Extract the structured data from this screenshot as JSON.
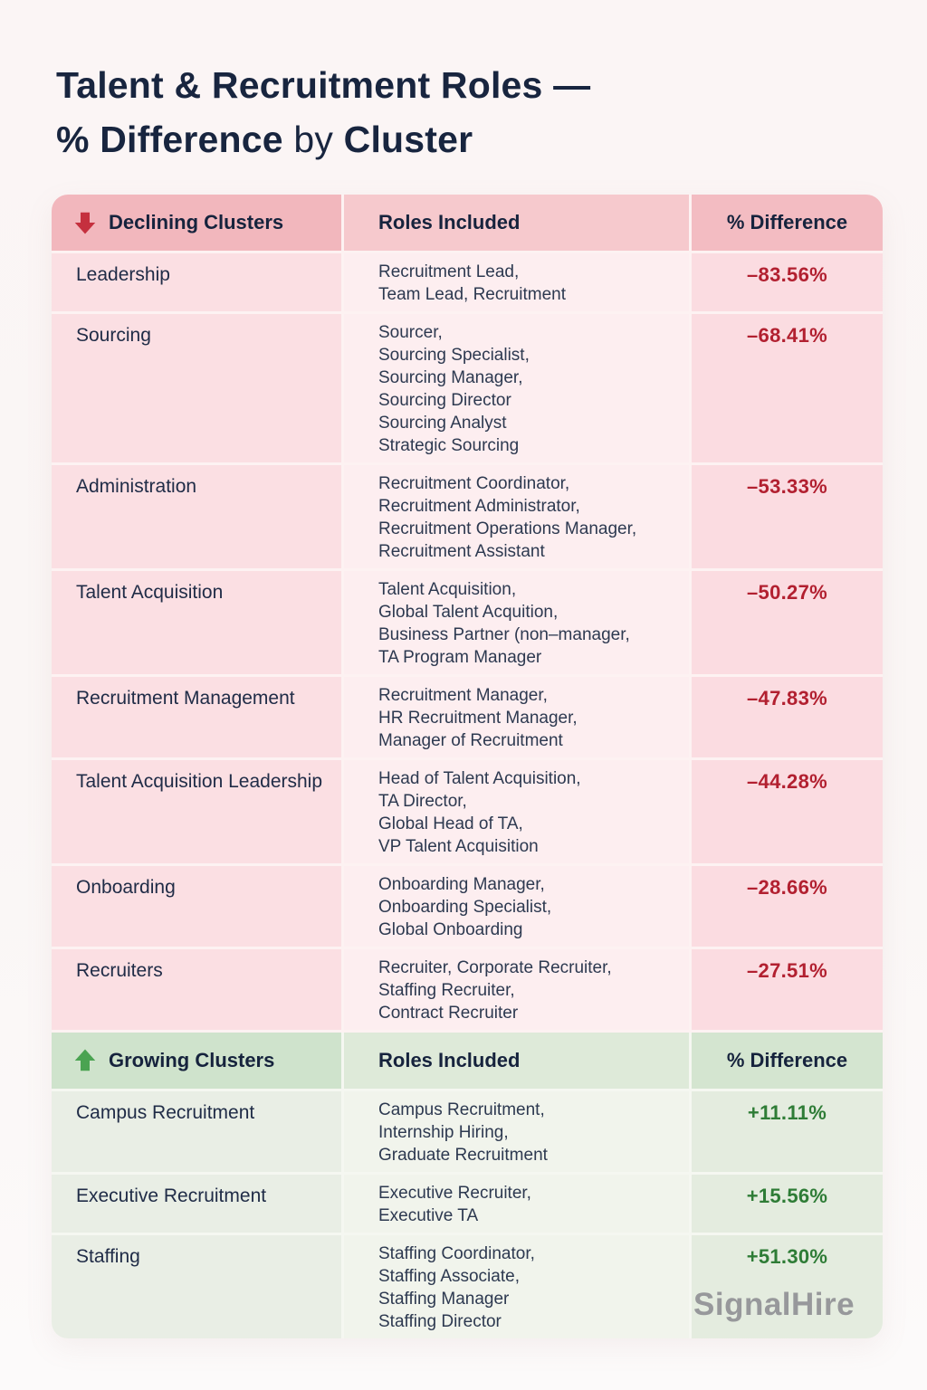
{
  "title": {
    "line1": "Talent & Recruitment Roles —",
    "line2_bold": "% Difference",
    "line2_light": "by",
    "line2_bold2": "Cluster"
  },
  "watermark": "SignalHire",
  "colors": {
    "declining_accent": "#c5303e",
    "declining_value": "#b22030",
    "growing_accent": "#4aa351",
    "growing_value": "#2e7c36",
    "title_navy": "#18253f"
  },
  "chart_data": {
    "type": "table",
    "title": "Talent & Recruitment Roles — % Difference by Cluster",
    "columns": [
      "Clusters",
      "Roles Included",
      "% Difference"
    ],
    "sections": [
      {
        "id": "declining",
        "label": "Declining Clusters",
        "arrow_icon": "down-arrow-icon",
        "roles_header": "Roles Included",
        "diff_header": "% Difference",
        "rows": [
          {
            "cluster": "Leadership",
            "roles": [
              "Recruitment Lead,",
              "Team Lead, Recruitment"
            ],
            "diff": "–83.56%"
          },
          {
            "cluster": "Sourcing",
            "roles": [
              "Sourcer,",
              "Sourcing Specialist,",
              "Sourcing Manager,",
              "Sourcing Director",
              "Sourcing Analyst",
              "Strategic Sourcing"
            ],
            "diff": "–68.41%"
          },
          {
            "cluster": "Administration",
            "roles": [
              "Recruitment Coordinator,",
              "Recruitment Administrator,",
              "Recruitment Operations Manager,",
              "Recruitment Assistant"
            ],
            "diff": "–53.33%"
          },
          {
            "cluster": "Talent Acquisition",
            "roles": [
              "Talent Acquisition,",
              "Global Talent Acquition,",
              "Business Partner (non–manager,",
              "TA Program Manager"
            ],
            "diff": "–50.27%"
          },
          {
            "cluster": "Recruitment Management",
            "roles": [
              "Recruitment Manager,",
              "HR Recruitment Manager,",
              "Manager of Recruitment"
            ],
            "diff": "–47.83%"
          },
          {
            "cluster": "Talent Acquisition Leadership",
            "roles": [
              "Head of Talent Acquisition,",
              "TA Director,",
              "Global Head of TA,",
              "VP Talent Acquisition"
            ],
            "diff": "–44.28%"
          },
          {
            "cluster": "Onboarding",
            "roles": [
              "Onboarding Manager,",
              "Onboarding Specialist,",
              "Global Onboarding"
            ],
            "diff": "–28.66%"
          },
          {
            "cluster": "Recruiters",
            "roles": [
              "Recruiter, Corporate Recruiter,",
              "Staffing Recruiter,",
              "Contract Recruiter"
            ],
            "diff": "–27.51%"
          }
        ]
      },
      {
        "id": "growing",
        "label": "Growing Clusters",
        "arrow_icon": "up-arrow-icon",
        "roles_header": "Roles Included",
        "diff_header": "% Difference",
        "rows": [
          {
            "cluster": "Campus Recruitment",
            "roles": [
              "Campus Recruitment,",
              "Internship Hiring,",
              "Graduate Recruitment"
            ],
            "diff": "+11.11%"
          },
          {
            "cluster": "Executive Recruitment",
            "roles": [
              "Executive Recruiter,",
              "Executive TA"
            ],
            "diff": "+15.56%"
          },
          {
            "cluster": "Staffing",
            "roles": [
              "Staffing Coordinator,",
              "Staffing Associate,",
              "Staffing Manager",
              "Staffing Director"
            ],
            "diff": "+51.30%"
          }
        ]
      }
    ]
  }
}
